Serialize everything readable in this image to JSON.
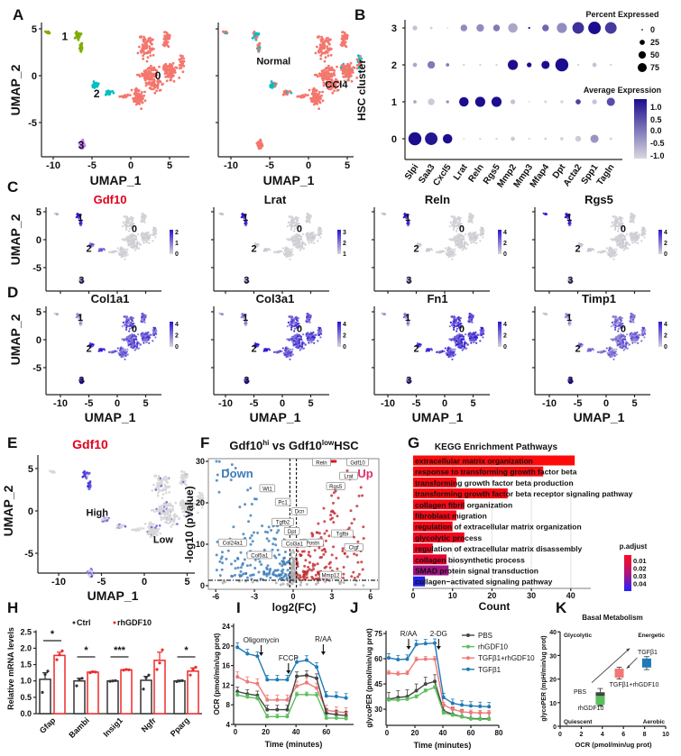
{
  "panel_labels": [
    "A",
    "B",
    "C",
    "D",
    "E",
    "F",
    "G",
    "H",
    "I",
    "J",
    "K"
  ],
  "colors": {
    "cluster_0": "#f4766d",
    "cluster_1": "#7cae00",
    "cluster_2": "#00bfc4",
    "cluster_3": "#c77cff",
    "normal": "#00bfc4",
    "ccl4": "#f4766d",
    "expr_low": "#d6d6d6",
    "expr_high": "#2a12d6",
    "down": "#3b7bb8",
    "up": "#c0282e",
    "up_label": "#e0306a",
    "gene_title_red": "#e0001b",
    "pbs": "#444444",
    "rhgdf10": "#5cbf5c",
    "tgfb1_rhgdf10": "#f07878",
    "tgfb1": "#1e7ab8",
    "ctrl_bar": "#333333",
    "rh_bar": "#ee2a2a"
  },
  "chart_data": [
    {
      "panel": "A",
      "type": "scatter",
      "xlabel": "UMAP_1",
      "ylabel": "UMAP_2",
      "xticks": [
        "-10",
        "-5",
        "0",
        "5"
      ],
      "yticks": [
        "-5",
        "0",
        "5"
      ],
      "xlim": [
        -11.5,
        7.5
      ],
      "ylim": [
        -8.8,
        5.5
      ],
      "subplots": [
        {
          "color_by": "cluster",
          "cluster_labels": [
            "0",
            "1",
            "2",
            "3"
          ],
          "cluster_label_positions": {
            "0": [
              3.5,
              0
            ],
            "1": [
              -8.5,
              4.2
            ],
            "2": [
              -4.4,
              -1.9
            ],
            "3": [
              -6.4,
              -7.4
            ]
          }
        },
        {
          "color_by": "condition",
          "groups": [
            "Normal",
            "CCl4"
          ],
          "group_label_positions": {
            "Normal": [
              -4.5,
              1.6
            ],
            "CCl4": [
              3.6,
              -0.9
            ]
          }
        }
      ]
    },
    {
      "panel": "B",
      "type": "dot",
      "ylabel": "HSC cluster",
      "clusters": [
        "0",
        "1",
        "2",
        "3"
      ],
      "genes": [
        "Slpi",
        "Saa3",
        "Cxcl5",
        "Lrat",
        "Reln",
        "Rgs5",
        "Mmp2",
        "Mmp3",
        "Mfap4",
        "Dpt",
        "Acta2",
        "Spp1",
        "Tagln"
      ],
      "percent_expressed": {
        "0": [
          75,
          70,
          40,
          1,
          2,
          2,
          8,
          2,
          3,
          5,
          15,
          30,
          3
        ],
        "1": [
          5,
          20,
          4,
          40,
          45,
          45,
          10,
          1,
          3,
          4,
          12,
          10,
          30
        ],
        "2": [
          8,
          25,
          5,
          2,
          2,
          2,
          45,
          10,
          30,
          75,
          2,
          8,
          2
        ],
        "3": [
          10,
          3,
          1,
          20,
          25,
          20,
          40,
          2,
          20,
          45,
          60,
          70,
          60
        ]
      },
      "average_expression": {
        "0": [
          1.2,
          1.1,
          1.2,
          -1,
          -1,
          -1,
          -0.9,
          -1,
          -1,
          -1,
          -0.9,
          -0.3,
          -1
        ],
        "1": [
          -0.5,
          -0.9,
          -0.2,
          1.2,
          1.2,
          1.2,
          -0.8,
          -1,
          -1,
          -1,
          0.6,
          -0.8,
          0.5
        ],
        "2": [
          -0.5,
          0,
          0,
          -1,
          -1,
          -1,
          1.2,
          1.2,
          1.2,
          1.2,
          -1,
          -0.8,
          -1
        ],
        "3": [
          -0.8,
          -1,
          -1,
          -0.2,
          -0.2,
          0,
          -0.5,
          1,
          0.2,
          -0.2,
          0.8,
          1.2,
          0.7
        ]
      },
      "size_legend_title": "Percent Expressed",
      "size_legend_values": [
        "0",
        "25",
        "50",
        "75"
      ],
      "color_legend_title": "Average Expression",
      "color_legend_values": [
        "1.0",
        "0.5",
        "0.0",
        "-0.5",
        "-1.0"
      ],
      "color_range": [
        -1.0,
        1.2
      ]
    },
    {
      "panel": "C",
      "type": "scatter",
      "xlabel": "",
      "ylabel": "UMAP_2",
      "yticks": [
        "-5",
        "0",
        "5"
      ],
      "features": [
        {
          "gene": "Gdf10",
          "legend_ticks": [
            "2",
            "1",
            "0"
          ],
          "expression_by_cluster": {
            "0": 0.02,
            "1": 0.9,
            "1b": 0.15,
            "2": 0.55,
            "3": 0.35
          }
        },
        {
          "gene": "Lrat",
          "legend_ticks": [
            "3",
            "2",
            "1"
          ],
          "expression_by_cluster": {
            "0": 0.02,
            "1": 0.9,
            "1b": 0.1,
            "2": 0.05,
            "3": 0.25
          }
        },
        {
          "gene": "Reln",
          "legend_ticks": [
            "4",
            "2",
            "0"
          ],
          "expression_by_cluster": {
            "0": 0.02,
            "1": 0.9,
            "1b": 0.1,
            "2": 0.05,
            "3": 0.3
          }
        },
        {
          "gene": "Rgs5",
          "legend_ticks": [
            "4",
            "2",
            "0"
          ],
          "expression_by_cluster": {
            "0": 0.03,
            "1": 0.9,
            "1b": 0.9,
            "2": 0.08,
            "3": 0.3
          }
        }
      ],
      "cluster_labels": [
        "0",
        "1",
        "2",
        "3"
      ]
    },
    {
      "panel": "D",
      "type": "scatter",
      "xlabel": "UMAP_1",
      "ylabel": "UMAP_2",
      "xticks": [
        "-10",
        "-5",
        "0",
        "5"
      ],
      "yticks": [
        "-5",
        "0",
        "5"
      ],
      "features": [
        {
          "gene": "Col1a1",
          "legend_ticks": [
            "4",
            "2",
            "0"
          ],
          "expression_by_cluster": {
            "0": 0.6,
            "1": 0.3,
            "1b": 0.15,
            "2": 0.9,
            "3": 0.85
          }
        },
        {
          "gene": "Col3a1",
          "legend_ticks": [
            "4",
            "2",
            "0"
          ],
          "expression_by_cluster": {
            "0": 0.65,
            "1": 0.4,
            "1b": 0.3,
            "2": 0.95,
            "3": 0.75
          }
        },
        {
          "gene": "Fn1",
          "legend_ticks": [
            "4",
            "2",
            "0"
          ],
          "expression_by_cluster": {
            "0": 0.72,
            "1": 0.4,
            "1b": 0.3,
            "2": 0.8,
            "3": 0.55
          }
        },
        {
          "gene": "Timp1",
          "legend_ticks": [
            "4",
            "2",
            "0"
          ],
          "expression_by_cluster": {
            "0": 0.5,
            "1": 0.3,
            "1b": 0.1,
            "2": 0.5,
            "3": 0.85
          }
        }
      ],
      "cluster_labels": [
        "0",
        "1",
        "2",
        "3"
      ]
    },
    {
      "panel": "E",
      "type": "scatter",
      "title": "Gdf10",
      "xlabel": "UMAP_1",
      "ylabel": "UMAP_2",
      "xticks": [
        "-10",
        "-5",
        "0",
        "5"
      ],
      "yticks": [
        "-5",
        "0",
        "5"
      ],
      "groups": [
        "High",
        "Low"
      ]
    },
    {
      "panel": "F",
      "type": "scatter",
      "title": {
        "gene_a": "Gdf10",
        "sup_a": "hi",
        "vs": " vs ",
        "gene_b": "Gdf10",
        "sup_b": "low",
        "cell": "HSC"
      },
      "xlabel": "log2(FC)",
      "ylabel": "-log10 (pValue)",
      "xticks": [
        "-6",
        "-3",
        "0",
        "3",
        "6"
      ],
      "yticks": [
        "0",
        "10",
        "20",
        "30"
      ],
      "xlim": [
        -6.5,
        6.7
      ],
      "ylim": [
        0,
        31
      ],
      "fc_threshold": [
        -0.25,
        0.25
      ],
      "p_threshold_log10": 1.3,
      "direction_labels": {
        "down": "Down",
        "up": "Up"
      },
      "labeled_genes": [
        {
          "gene": "Reln",
          "log2fc": 2.2,
          "neglog10p": 29.8
        },
        {
          "gene": "Gdf10",
          "log2fc": 5.0,
          "neglog10p": 29.8
        },
        {
          "gene": "Lrat",
          "log2fc": 4.3,
          "neglog10p": 26.5
        },
        {
          "gene": "Rgs5",
          "log2fc": 3.3,
          "neglog10p": 24.0
        },
        {
          "gene": "Wt1",
          "log2fc": -2.0,
          "neglog10p": 23.5
        },
        {
          "gene": "Pc1",
          "log2fc": -0.8,
          "neglog10p": 20.2
        },
        {
          "gene": "Dcn",
          "log2fc": 0.5,
          "neglog10p": 18.0
        },
        {
          "gene": "Tgfb2",
          "log2fc": -0.8,
          "neglog10p": 15.4
        },
        {
          "gene": "Dpt",
          "log2fc": -0.1,
          "neglog10p": 13.2
        },
        {
          "gene": "Tgfbi",
          "log2fc": 3.8,
          "neglog10p": 12.6
        },
        {
          "gene": "Col24a1",
          "log2fc": -4.7,
          "neglog10p": 10.4
        },
        {
          "gene": "Postn",
          "log2fc": 1.5,
          "neglog10p": 10.4
        },
        {
          "gene": "Col3a1",
          "log2fc": 0.1,
          "neglog10p": 10.2
        },
        {
          "gene": "Ctgf",
          "log2fc": 4.7,
          "neglog10p": 9.3
        },
        {
          "gene": "Col5a1",
          "log2fc": -2.6,
          "neglog10p": 7.4
        },
        {
          "gene": "Mmp12",
          "log2fc": 2.9,
          "neglog10p": 2.6
        }
      ]
    },
    {
      "panel": "G",
      "type": "bar",
      "orientation": "horizontal",
      "title": "KEGG Enrichment Pathways",
      "xlabel": "Count",
      "xticks": [
        "0",
        "10",
        "20",
        "30",
        "40"
      ],
      "xlim": [
        0,
        45
      ],
      "categories": [
        "extracellular matrix organization",
        "response to transforming growth factor beta",
        "transforming growth factor beta production",
        "transforming growth factor beta receptor signaling pathway",
        "collagen fibril organization",
        "fibroblast migration",
        "regulation of extracellular matrix organization",
        "glycolytic process",
        "regulation of extracellular matrix disassembly",
        "collagen biosynthetic process",
        "SMAD protein signal transduction",
        "collagen−activated signaling pathway"
      ],
      "values": [
        41,
        33,
        11,
        24,
        13,
        11,
        10,
        13,
        5,
        8.5,
        9,
        3
      ],
      "p_adjust": [
        0.004,
        0.005,
        0.005,
        0.005,
        0.006,
        0.006,
        0.006,
        0.007,
        0.008,
        0.01,
        0.025,
        0.045
      ],
      "legend_title": "p.adjust",
      "legend_values": [
        "0.01",
        "0.02",
        "0.03",
        "0.04"
      ],
      "legend_placement": "bottom-right"
    },
    {
      "panel": "H",
      "type": "bar",
      "ylabel": "Relative mRNA levels",
      "yticks": [
        "0.0",
        "0.5",
        "1.0",
        "1.5",
        "2.0",
        "2.5"
      ],
      "ylim": [
        0,
        2.5
      ],
      "categories": [
        "Gfap",
        "Bambi",
        "Insig1",
        "Ngfr",
        "Pparg"
      ],
      "series": [
        {
          "name": "Ctrl",
          "values": [
            1.05,
            1.0,
            1.0,
            1.02,
            1.0
          ],
          "sem": [
            0.2,
            0.08,
            0.01,
            0.12,
            0.02
          ],
          "points": [
            [
              0.65,
              1.2,
              1.3
            ],
            [
              0.85,
              1.05,
              1.08
            ],
            [
              0.99,
              1.0,
              1.01
            ],
            [
              0.75,
              1.1,
              1.18
            ],
            [
              0.98,
              1.0,
              1.01
            ]
          ]
        },
        {
          "name": "rhGDF10",
          "values": [
            1.78,
            1.27,
            1.34,
            1.63,
            1.3
          ],
          "sem": [
            0.1,
            0.02,
            0.01,
            0.25,
            0.1
          ],
          "points": [
            [
              1.65,
              1.8,
              1.92
            ],
            [
              1.25,
              1.28,
              1.27
            ],
            [
              1.33,
              1.35,
              1.34
            ],
            [
              1.35,
              1.55,
              1.95
            ],
            [
              1.18,
              1.35,
              1.42
            ]
          ]
        }
      ],
      "significance": [
        "*",
        "*",
        "***",
        "",
        "*"
      ],
      "legend_placement": "top"
    },
    {
      "panel": "I",
      "type": "line",
      "xlabel": "Time (minutes)",
      "ylabel": "OCR (pmol/min/ug prot)",
      "xticks": [
        "0",
        "20",
        "40",
        "60"
      ],
      "yticks": [
        "4",
        "8",
        "12",
        "16",
        "20",
        "24"
      ],
      "xlim": [
        0,
        78
      ],
      "ylim": [
        4,
        24
      ],
      "x": [
        1.3,
        7.9,
        14.5,
        21,
        27.6,
        34.2,
        40.5,
        47,
        53.6,
        60,
        66.6,
        73
      ],
      "series": [
        {
          "name": "TGFβ1",
          "values": [
            19.7,
            18.4,
            17.9,
            13.1,
            13.1,
            13.1,
            16.7,
            17.1,
            15.7,
            9.8,
            9.7,
            9.4
          ],
          "err": 0.9
        },
        {
          "name": "TGFβ1+rhGDF10",
          "values": [
            13.7,
            12.7,
            12.3,
            9,
            9,
            9,
            11.8,
            12.5,
            11.4,
            6.9,
            6.6,
            6.4
          ],
          "err": 1.0
        },
        {
          "name": "PBS",
          "values": [
            10.7,
            10.2,
            9.9,
            7,
            7,
            7,
            13.8,
            14,
            13.4,
            6.3,
            6,
            5.8
          ],
          "err": 0.9
        },
        {
          "name": "rhGDF10",
          "values": [
            10,
            9.6,
            9.3,
            5.6,
            5.6,
            5.6,
            10.1,
            10.1,
            10,
            5.3,
            5.3,
            5.2
          ],
          "err": 0.5
        }
      ],
      "injections": [
        {
          "label": "Oligomycin",
          "time": 17
        },
        {
          "label": "FCCP",
          "time": 35
        },
        {
          "label": "R/AA",
          "time": 58
        }
      ]
    },
    {
      "panel": "J",
      "type": "line",
      "xlabel": "Time (minutes)",
      "ylabel": "glycoPER  (pmol/min/ug prot)",
      "xticks": [
        "0",
        "20",
        "40",
        "60",
        "80"
      ],
      "yticks": [
        "30",
        "45",
        "60",
        "75"
      ],
      "xlim": [
        0,
        80
      ],
      "ylim": [
        20,
        75
      ],
      "x": [
        1.3,
        7.9,
        14.5,
        21,
        27.6,
        34.2,
        40.5,
        47,
        53.6,
        60,
        66.6,
        73
      ],
      "series": [
        {
          "name": "PBS",
          "values": [
            36,
            37,
            37.5,
            41,
            45,
            46.5,
            29,
            27,
            25.5,
            24.5,
            24.3,
            24.3
          ],
          "err": 4
        },
        {
          "name": "rhGDF10",
          "values": [
            35.5,
            35.5,
            36,
            37.5,
            41,
            43,
            27.8,
            26.5,
            25.5,
            24.2,
            24,
            24
          ],
          "err": 1
        },
        {
          "name": "TGFβ1+rhGDF10",
          "values": [
            51.5,
            51,
            51.3,
            59.5,
            59.8,
            59.8,
            32.5,
            30,
            28.5,
            28,
            27.8,
            27.8
          ],
          "err": 1.5
        },
        {
          "name": "TGFβ1",
          "values": [
            60.5,
            59.5,
            59.8,
            68.5,
            69,
            69.3,
            37,
            33.5,
            32.5,
            32,
            31.7,
            31.5
          ],
          "err": 2.5
        }
      ],
      "injections": [
        {
          "label": "R/AA",
          "time": 15.5
        },
        {
          "label": "2-DG",
          "time": 37
        }
      ],
      "legend_placement": "right"
    },
    {
      "panel": "K",
      "type": "box",
      "title": "Basal Metabolism",
      "xlabel": "OCR (pmol/min/ug prot)",
      "ylabel": "glycoPER (mpH/min/ug prot)",
      "xticks": [
        "0",
        "2",
        "4",
        "6",
        "8",
        "10"
      ],
      "yticks": [
        "0",
        "10",
        "20",
        "30",
        "40"
      ],
      "xlim": [
        0,
        10
      ],
      "ylim": [
        0,
        40
      ],
      "quadrants": {
        "top_left": "Glycolytic",
        "top_right": "Energetic",
        "bottom_left": "Quiescent",
        "bottom_right": "Aerobic"
      },
      "groups": [
        {
          "name": "PBS",
          "ocr": 3.8,
          "glycoper": 12.5,
          "range": [
            9,
            16
          ]
        },
        {
          "name": "rhGDF10",
          "ocr": 3.8,
          "glycoper": 11,
          "range": [
            8.5,
            13
          ]
        },
        {
          "name": "TGFβ1+rhGDF10",
          "ocr": 5.6,
          "glycoper": 22.5,
          "range": [
            20,
            25
          ]
        },
        {
          "name": "TGFβ1",
          "ocr": 8.2,
          "glycoper": 26.8,
          "range": [
            24,
            29.5
          ]
        }
      ]
    }
  ]
}
